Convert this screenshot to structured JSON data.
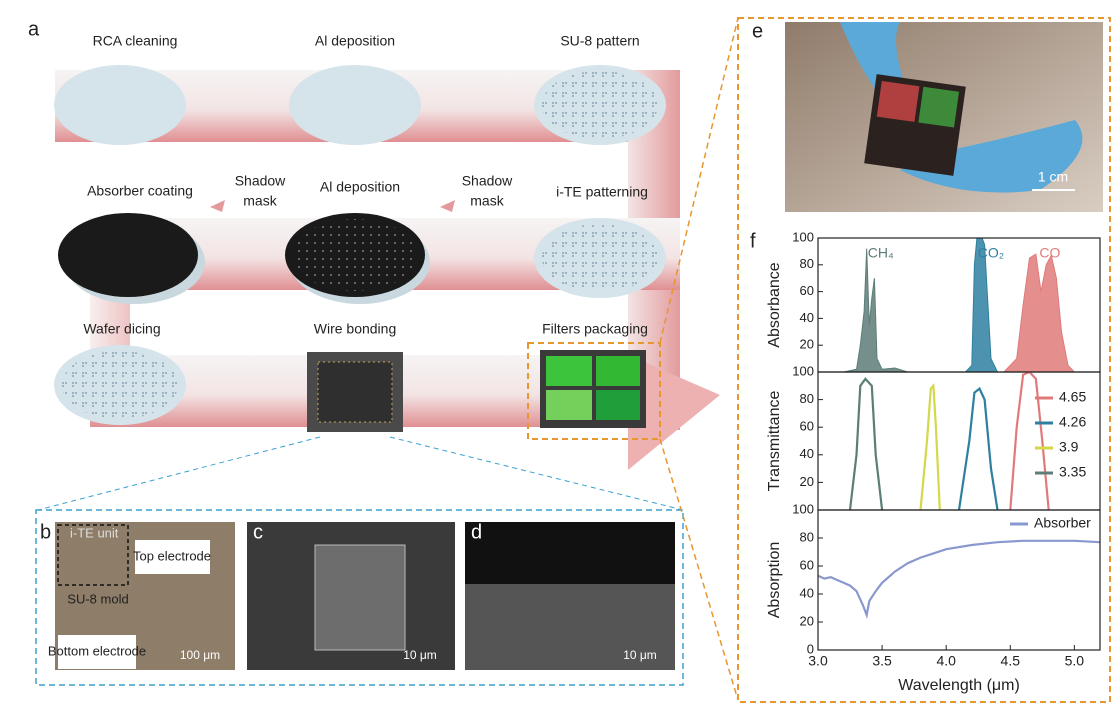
{
  "panel_labels": [
    "a",
    "b",
    "c",
    "d",
    "e",
    "f"
  ],
  "panel_a": {
    "steps": [
      "RCA cleaning",
      "Al deposition",
      "SU-8 pattern",
      "Absorber coating",
      "Al deposition",
      "i-TE patterning",
      "Wafer dicing",
      "Wire bonding",
      "Filters packaging"
    ],
    "shadow_masks": [
      {
        "lines": [
          "Shadow",
          "mask"
        ]
      },
      {
        "lines": [
          "Shadow",
          "mask"
        ]
      }
    ]
  },
  "panel_b": {
    "labels": [
      "i-TE unit",
      "Top electrode",
      "SU-8 mold",
      "Bottom electrode"
    ],
    "scale_bar": "100 μm"
  },
  "panel_c": {
    "scale_bar": "10 μm"
  },
  "panel_d": {
    "scale_bar": "10 μm"
  },
  "panel_e": {
    "scale_bar": "1 cm"
  },
  "chart_data": [
    {
      "type": "area",
      "ylabel": "Absorbance",
      "xlim": [
        3.0,
        5.2
      ],
      "ylim": [
        0,
        100
      ],
      "yticks": [
        20,
        40,
        60,
        80,
        100
      ],
      "series": [
        {
          "name": "CH₄",
          "color": "#5d7d78",
          "x": [
            3.2,
            3.3,
            3.33,
            3.36,
            3.38,
            3.4,
            3.42,
            3.44,
            3.46,
            3.5,
            3.6,
            3.7
          ],
          "values": [
            0,
            2,
            20,
            45,
            92,
            35,
            55,
            70,
            10,
            2,
            3,
            0
          ]
        },
        {
          "name": "CO₂",
          "color": "#2e7fa0",
          "x": [
            4.15,
            4.2,
            4.22,
            4.24,
            4.26,
            4.28,
            4.3,
            4.32,
            4.35,
            4.4
          ],
          "values": [
            0,
            5,
            80,
            100,
            100,
            100,
            95,
            60,
            10,
            0
          ]
        },
        {
          "name": "CO",
          "color": "#e07a7a",
          "x": [
            4.45,
            4.55,
            4.6,
            4.65,
            4.7,
            4.74,
            4.78,
            4.82,
            4.86,
            4.9,
            4.95,
            5.0
          ],
          "values": [
            0,
            10,
            50,
            85,
            88,
            60,
            80,
            87,
            70,
            30,
            5,
            0
          ]
        }
      ]
    },
    {
      "type": "line",
      "ylabel": "Transmittance",
      "xlim": [
        3.0,
        5.2
      ],
      "ylim": [
        0,
        100
      ],
      "yticks": [
        20,
        40,
        60,
        80,
        100
      ],
      "legend": "right",
      "series": [
        {
          "name": "4.65",
          "color": "#e07a7a",
          "x": [
            4.5,
            4.55,
            4.6,
            4.65,
            4.7,
            4.75,
            4.8
          ],
          "values": [
            0,
            60,
            98,
            100,
            95,
            50,
            0
          ]
        },
        {
          "name": "4.26",
          "color": "#2e7fa0",
          "x": [
            4.1,
            4.18,
            4.22,
            4.26,
            4.3,
            4.35,
            4.4
          ],
          "values": [
            0,
            50,
            85,
            88,
            80,
            30,
            0
          ]
        },
        {
          "name": "3.9",
          "color": "#d4d84a",
          "x": [
            3.8,
            3.85,
            3.88,
            3.9,
            3.92,
            3.95
          ],
          "values": [
            0,
            50,
            88,
            90,
            60,
            0
          ]
        },
        {
          "name": "3.35",
          "color": "#5d7d78",
          "x": [
            3.25,
            3.3,
            3.33,
            3.37,
            3.42,
            3.45,
            3.5
          ],
          "values": [
            0,
            40,
            90,
            95,
            90,
            40,
            0
          ]
        }
      ]
    },
    {
      "type": "line",
      "ylabel": "Absorption",
      "xlabel": "Wavelength (μm)",
      "xlim": [
        3.0,
        5.2
      ],
      "ylim": [
        0,
        100
      ],
      "yticks": [
        0,
        20,
        40,
        60,
        80,
        100
      ],
      "legend": "top-right",
      "xticks": [
        {
          "value": 3.0,
          "label": "3.0"
        },
        3.5,
        {
          "value": 4.0,
          "label": "4.0"
        },
        4.5,
        {
          "value": 5.0,
          "label": "5.0"
        }
      ],
      "series": [
        {
          "name": "Absorber",
          "color": "#8a98d0",
          "x": [
            3.0,
            3.05,
            3.1,
            3.15,
            3.2,
            3.25,
            3.3,
            3.35,
            3.38,
            3.4,
            3.45,
            3.5,
            3.6,
            3.7,
            3.8,
            3.9,
            4.0,
            4.2,
            4.4,
            4.6,
            4.8,
            5.0,
            5.2
          ],
          "values": [
            53,
            51,
            52,
            50,
            48,
            46,
            42,
            32,
            25,
            35,
            42,
            48,
            56,
            62,
            66,
            69,
            72,
            75,
            77,
            78,
            78,
            78,
            77
          ]
        }
      ]
    }
  ]
}
